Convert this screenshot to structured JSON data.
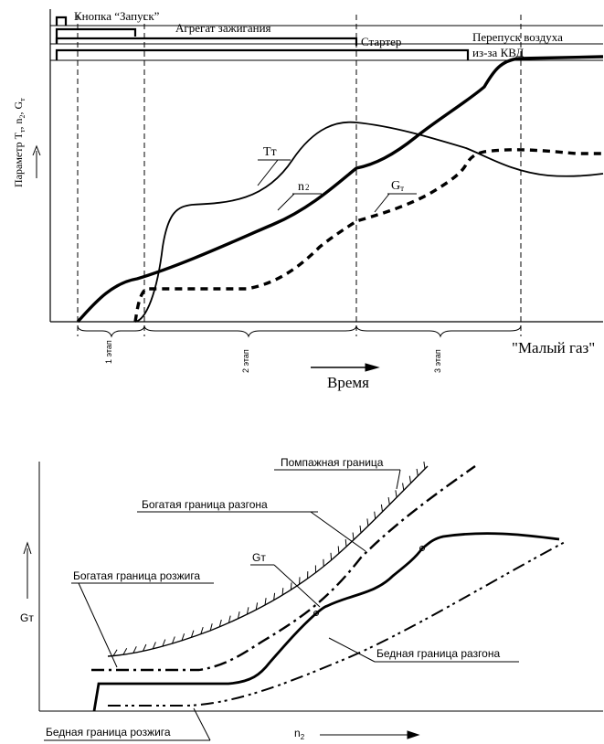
{
  "top_chart": {
    "bar_labels": {
      "start_button": "Кнопка “Запуск”",
      "ignition_unit": "Агрегат зажигания",
      "starter": "Стартер",
      "air_bypass_line1": "Перепуск воздуха",
      "air_bypass_line2": "из-за КВД"
    },
    "y_axis_label": "Параметр Т",
    "y_axis_sub1": "т",
    "y_axis_mid": ", n",
    "y_axis_sub2": "2",
    "y_axis_mid2": ", G",
    "y_axis_sub3": "т",
    "curve_labels": {
      "tt": "Тт",
      "n2_base": "n",
      "n2_sub": "2",
      "gt_base": "G",
      "gt_sub": "т"
    },
    "stage_labels": [
      "1 этап",
      "2 этап",
      "3 этап"
    ],
    "idle_label": "\"Малый газ\"",
    "time_label": "Время"
  },
  "bottom_chart": {
    "surge_boundary": "Помпажная граница",
    "rich_accel_boundary": "Богатая граница разгона",
    "gt_curve": "Gт",
    "rich_ignition_boundary": "Богатая граница розжига",
    "lean_accel_boundary": "Бедная граница разгона",
    "lean_ignition_boundary": "Бедная граница розжига",
    "y_axis_label": "Gт",
    "x_axis_base": "n",
    "x_axis_sub": "2"
  }
}
